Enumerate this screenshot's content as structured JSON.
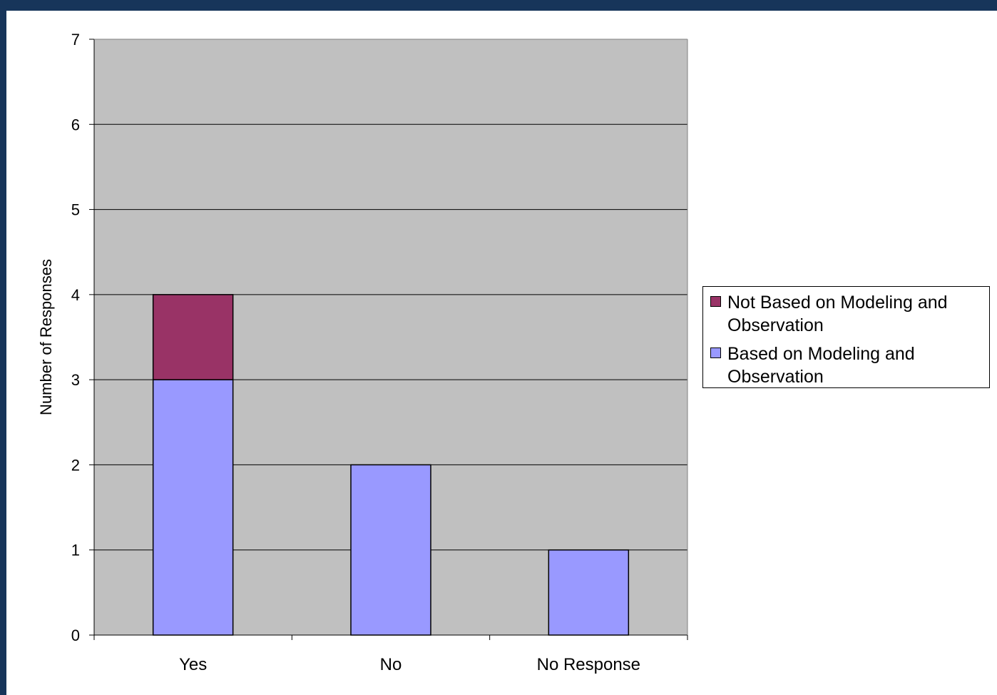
{
  "chart_data": {
    "type": "bar",
    "stacked": true,
    "categories": [
      "Yes",
      "No",
      "No Response"
    ],
    "series": [
      {
        "name": "Based on Modeling and Observation",
        "values": [
          3,
          2,
          1
        ],
        "color": "#9999ff"
      },
      {
        "name": "Not Based on Modeling and Observation",
        "values": [
          1,
          0,
          0
        ],
        "color": "#993366"
      }
    ],
    "title": "",
    "xlabel": "",
    "ylabel": "Number of Responses",
    "ylim": [
      0,
      7
    ],
    "yticks": [
      "0",
      "1",
      "2",
      "3",
      "4",
      "5",
      "6",
      "7"
    ],
    "grid": true,
    "plot_background": "#c0c0c0",
    "legend_position": "right",
    "legend": [
      {
        "label": "Not Based on Modeling and Observation",
        "color": "#993366"
      },
      {
        "label": "Based on Modeling and Observation",
        "color": "#9999ff"
      }
    ]
  }
}
